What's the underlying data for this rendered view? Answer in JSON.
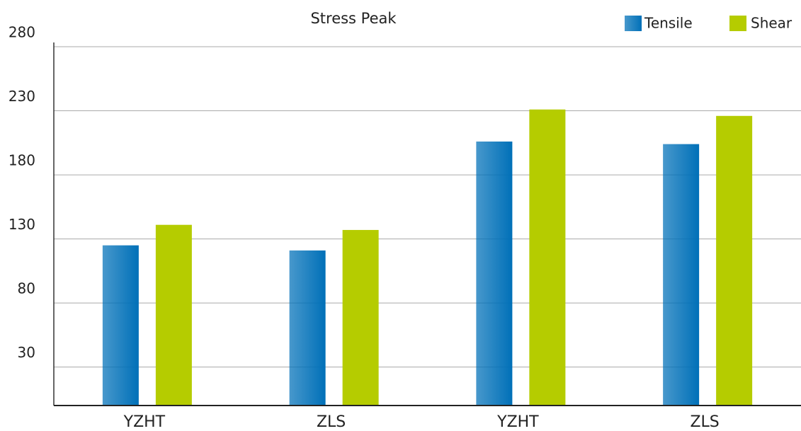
{
  "chart_data": {
    "type": "bar",
    "title": "Stress Peak",
    "categories": [
      "YZHT",
      "ZLS",
      "YZHT",
      "ZLS"
    ],
    "series": [
      {
        "name": "Tensile",
        "color": "#0070b8",
        "values": [
          125,
          121,
          206,
          204
        ]
      },
      {
        "name": "Shear",
        "color": "#b5cc00",
        "values": [
          141,
          137,
          231,
          226
        ]
      }
    ],
    "ylim": [
      0,
      280
    ],
    "yticks": [
      30,
      80,
      130,
      180,
      230,
      280
    ],
    "grid": true,
    "legend": "top-right"
  }
}
